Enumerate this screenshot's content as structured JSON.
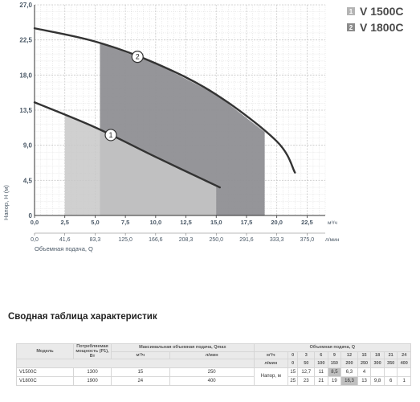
{
  "chart_data": {
    "type": "line",
    "x_ticks": [
      "0,0",
      "2,5",
      "5,0",
      "7,5",
      "10,0",
      "12,5",
      "15,0",
      "17,5",
      "20,0",
      "22,5"
    ],
    "x_unit": "м³/ч",
    "x2_ticks": [
      "0,0",
      "41,6",
      "83,3",
      "125,0",
      "166,6",
      "208,3",
      "250,0",
      "291,6",
      "333,3",
      "375,0"
    ],
    "x2_unit": "л/мин",
    "xlabel": "Объемная подача, Q",
    "y_ticks": [
      "0",
      "4,5",
      "9,0",
      "13,5",
      "18,0",
      "22,5",
      "27,0"
    ],
    "ylabel": "Напор, H (м)",
    "xlim": [
      0,
      24
    ],
    "ylim": [
      0,
      27
    ],
    "grid": true,
    "series": [
      {
        "name": "V 1500C",
        "marker": "1",
        "x": [
          0,
          5,
          10,
          15.3
        ],
        "y": [
          14.5,
          11.3,
          7.5,
          3.6
        ],
        "operating_range": [
          2.5,
          15
        ]
      },
      {
        "name": "V 1800C",
        "marker": "2",
        "x": [
          0,
          5,
          10,
          15,
          20,
          21.5
        ],
        "y": [
          24,
          22.3,
          19.5,
          15.5,
          9.5,
          5.5
        ],
        "operating_range": [
          5.4,
          19
        ]
      }
    ],
    "legend_position": "top-right"
  },
  "legend": {
    "items": [
      {
        "number": "1",
        "label": "V 1500C",
        "color": "#b4b4b4"
      },
      {
        "number": "2",
        "label": "V 1800C",
        "color": "#8c8c8c"
      }
    ]
  },
  "summary": {
    "title": "Сводная таблица характеристик",
    "headers": {
      "model": "Модель",
      "power": "Потребляемая мощность (P1), Вт",
      "max_flow": "Максимальная объемная подача, Qmax",
      "flow": "Объемная подача, Q",
      "m3h": "м³/ч",
      "lmin": "л/мин",
      "head": "Напор, м"
    },
    "flow_m3h": [
      "0",
      "3",
      "6",
      "9",
      "12",
      "15",
      "18",
      "21",
      "24"
    ],
    "flow_lmin": [
      "0",
      "50",
      "100",
      "150",
      "200",
      "250",
      "300",
      "350",
      "400"
    ],
    "rows": [
      {
        "model": "V1500C",
        "power": "1300",
        "qmax_m3h": "15",
        "qmax_lmin": "250",
        "heads": [
          "15",
          "12,7",
          "11",
          "8,5",
          "6,3",
          "4",
          "",
          "",
          ""
        ]
      },
      {
        "model": "V1800C",
        "power": "1900",
        "qmax_m3h": "24",
        "qmax_lmin": "400",
        "heads": [
          "25",
          "23",
          "21",
          "19",
          "16,3",
          "13",
          "9,8",
          "6",
          "1"
        ]
      }
    ]
  },
  "colors": {
    "area_1": "#c8c8c8",
    "area_2": "#8f8f94",
    "curve": "#333333",
    "grid": "#c9c9c9",
    "axis_text": "#4a5866"
  }
}
